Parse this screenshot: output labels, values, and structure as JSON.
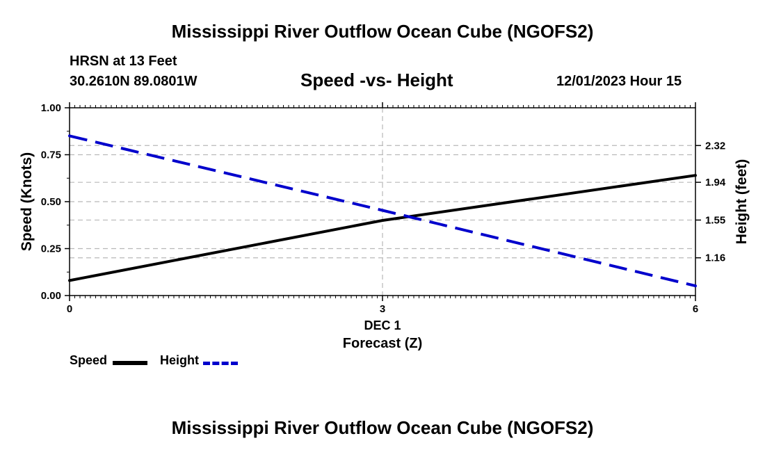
{
  "header": {
    "title": "Mississippi River Outflow Ocean Cube (NGOFS2)",
    "station": "HRSN at 13 Feet",
    "coords": "30.2610N  89.0801W",
    "datetime": "12/01/2023 Hour 15",
    "bottom_title": "Mississippi River Outflow Ocean Cube (NGOFS2)"
  },
  "chart_data": {
    "type": "line",
    "title": "Speed -vs- Height",
    "xlabel": "Forecast (Z)",
    "x_date_label": "DEC 1",
    "x": [
      0,
      3,
      6
    ],
    "x_ticks": [
      "0",
      "3",
      "6"
    ],
    "xlim": [
      0,
      6
    ],
    "ylabel_left": "Speed (Knots)",
    "ylim_left": [
      0,
      1
    ],
    "yticks_left": [
      "0.00",
      "0.25",
      "0.50",
      "0.75",
      "1.00"
    ],
    "ylabel_right": "Height (feet)",
    "ylim_right": [
      0.77,
      2.71
    ],
    "yticks_right": [
      "1.16",
      "1.55",
      "1.94",
      "2.32"
    ],
    "series": [
      {
        "name": "Speed",
        "axis": "left",
        "style": "solid",
        "color": "#000000",
        "values": [
          0.08,
          0.4,
          0.64
        ]
      },
      {
        "name": "Height",
        "axis": "right",
        "style": "dashed",
        "color": "#0000cc",
        "values": [
          2.42,
          1.65,
          0.87
        ]
      }
    ],
    "legend": "bottom-left"
  }
}
